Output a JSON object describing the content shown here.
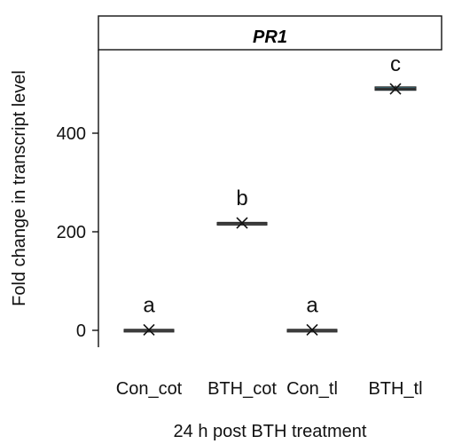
{
  "chart_data": {
    "type": "box",
    "title": "PR1",
    "xlabel": "24 h post BTH treatment",
    "ylabel": "Fold change in transcript level",
    "categories": [
      "Con_cot",
      "BTH_cot",
      "Con_tl",
      "BTH_tl"
    ],
    "values": [
      1,
      218,
      1,
      490
    ],
    "q1": [
      0,
      217,
      0,
      487
    ],
    "q3": [
      2,
      219,
      2,
      494
    ],
    "whisker_low": [
      0,
      216,
      0,
      485
    ],
    "whisker_high": [
      3,
      220,
      3,
      497
    ],
    "significance_letters": [
      "a",
      "b",
      "a",
      "c"
    ],
    "yticks": [
      0,
      200,
      400
    ],
    "ylim": [
      -20,
      575
    ],
    "grid": false,
    "legend": "none"
  },
  "colors": {
    "box_median": "#333333",
    "highlight_box": "#3d7a85",
    "axis": "#111111",
    "mean_marker": "#111111"
  }
}
